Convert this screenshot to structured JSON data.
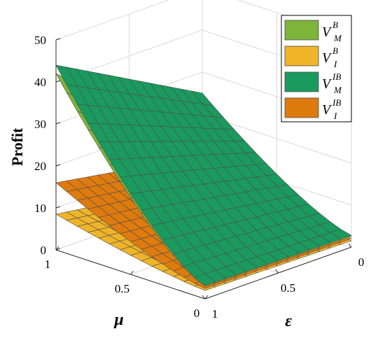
{
  "chart_data": {
    "type": "surface",
    "zlabel": "Profit",
    "xlabel": "μ",
    "ylabel": "ε",
    "zlim": [
      0,
      50
    ],
    "mu_range": [
      0,
      1
    ],
    "eps_range": [
      0,
      1
    ],
    "z_ticks": [
      "0",
      "10",
      "20",
      "30",
      "40",
      "50"
    ],
    "mu_ticks": [
      "0",
      "0.5",
      "1"
    ],
    "eps_ticks": [
      "0",
      "0.5",
      "1"
    ],
    "grid": true,
    "legend_position": "top-right",
    "series": [
      {
        "name": "V_M^B",
        "legend": {
          "base": "V",
          "sup": "B",
          "sub": "M"
        },
        "color": "#7db43a",
        "corners": {
          "mu1_eps1": 42,
          "mu1_eps0": 11,
          "mu0_eps1": 3.0,
          "mu0_eps0": 2.5
        }
      },
      {
        "name": "V_I^B",
        "legend": {
          "base": "V",
          "sup": "B",
          "sub": "I"
        },
        "color": "#f0b429",
        "corners": {
          "mu1_eps1": 8.5,
          "mu1_eps0": 3.5,
          "mu0_eps1": 2.0,
          "mu0_eps0": 1.5
        }
      },
      {
        "name": "V_M^IB",
        "legend": {
          "base": "V",
          "sup": "IB",
          "sub": "M"
        },
        "color": "#1a9a5e",
        "corners": {
          "mu1_eps1": 44,
          "mu1_eps0": 25,
          "mu0_eps1": 3.2,
          "mu0_eps0": 2.8
        }
      },
      {
        "name": "V_I^IB",
        "legend": {
          "base": "V",
          "sup": "IB",
          "sub": "I"
        },
        "color": "#de7b0e",
        "corners": {
          "mu1_eps1": 16,
          "mu1_eps0": 10,
          "mu0_eps1": 2.5,
          "mu0_eps0": 2.0
        }
      }
    ]
  }
}
